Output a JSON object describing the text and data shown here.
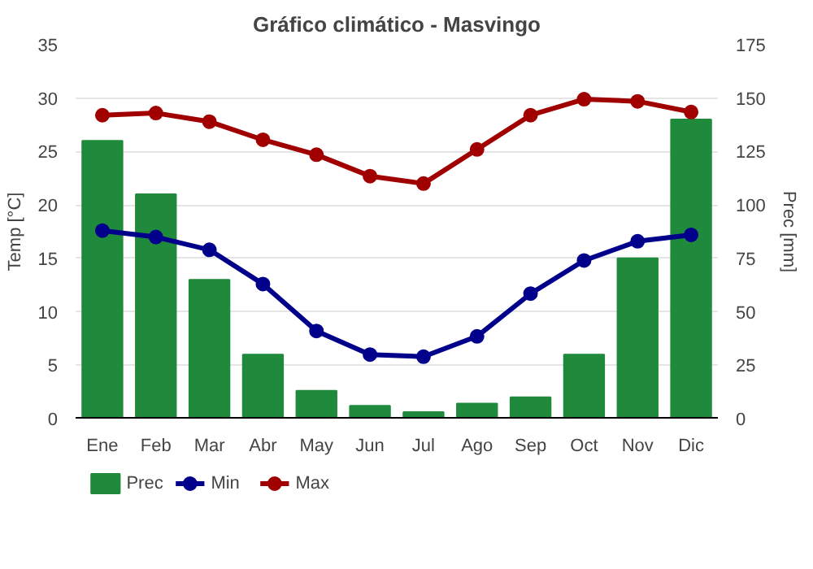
{
  "chart_data": {
    "type": "line",
    "title": "Gráfico climático - Masvingo",
    "categories": [
      "Ene",
      "Feb",
      "Mar",
      "Abr",
      "May",
      "Jun",
      "Jul",
      "Ago",
      "Sep",
      "Oct",
      "Nov",
      "Dic"
    ],
    "series": [
      {
        "name": "Prec",
        "type": "bar",
        "axis": "y2",
        "color": "#1f8a3b",
        "values": [
          130,
          105,
          65,
          30,
          13,
          6,
          3,
          7,
          10,
          30,
          75,
          140
        ]
      },
      {
        "name": "Min",
        "color": "#00008b",
        "values": [
          17.6,
          17.0,
          15.8,
          12.6,
          8.2,
          6.0,
          5.8,
          7.7,
          11.7,
          14.8,
          16.6,
          17.2
        ]
      },
      {
        "name": "Max",
        "color": "#a00000",
        "values": [
          28.4,
          28.6,
          27.8,
          26.1,
          24.7,
          22.7,
          22.0,
          25.2,
          28.4,
          29.9,
          29.7,
          28.7
        ]
      }
    ],
    "ylabel": "Temp [°C]",
    "y2label": "Prec [mm]",
    "ylim": [
      0,
      35
    ],
    "yticks": [
      0,
      5,
      10,
      15,
      20,
      25,
      30,
      35
    ],
    "y2lim": [
      0,
      175
    ],
    "y2ticks": [
      0,
      25,
      50,
      75,
      100,
      125,
      150,
      175
    ],
    "grid": "y",
    "legend": "bottom",
    "marker": "circle",
    "line_style": "solid"
  }
}
